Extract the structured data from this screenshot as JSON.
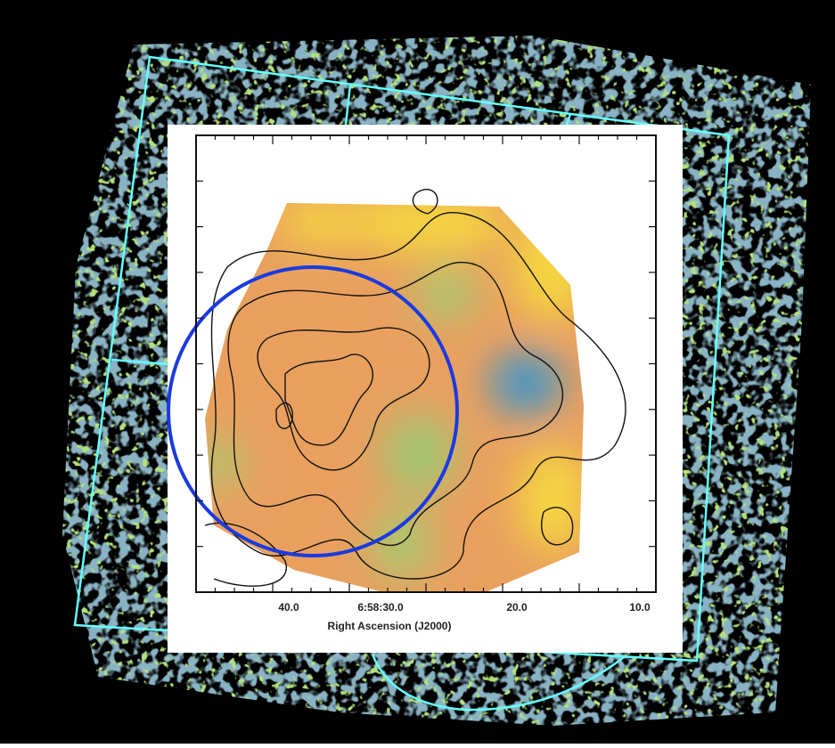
{
  "figure": {
    "x_axis": {
      "title": "Right Ascension (J2000)",
      "tick_labels": [
        "40.0",
        "6:58:30.0",
        "20.0",
        "10.0"
      ]
    }
  }
}
